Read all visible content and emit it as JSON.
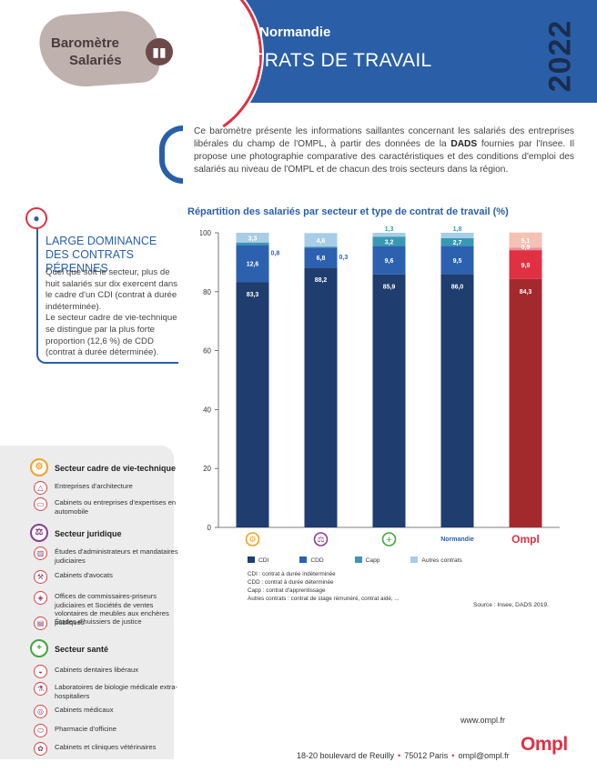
{
  "header": {
    "logo_line1": "Baromètre",
    "logo_line2": "Salariés",
    "region": "Région Normandie",
    "title": "CONTRATS DE TRAVAIL",
    "year": "2022"
  },
  "intro": {
    "before": "Ce baromètre présente les informations saillantes concernant les salariés des entreprises libérales du champ de l'OMPL, à partir des données de la ",
    "bold": "DADS",
    "after": " fournies par l'Insee. Il propose une photographie comparative des caractéristiques et des conditions d'emploi des salariés au niveau de l'OMPL et de chacun des trois secteurs dans la région."
  },
  "insight": {
    "icon": "lightbulb-icon",
    "title": "LARGE DOMINANCE DES CONTRATS PÉRENNES",
    "p1": "Quel que soit le secteur, plus de huit salariés sur dix exercent dans le cadre d'un CDI (contrat à durée indéterminée).",
    "p2": "Le secteur cadre de vie-technique se distingue par la plus forte proportion (12,6 %) de CDD (contrat à durée déterminée)."
  },
  "sidebar": {
    "sections": [
      {
        "title": "Secteur cadre de vie-technique",
        "icon": "gear-icon",
        "color": "#f2a127",
        "items": [
          {
            "label": "Entreprises d'architecture",
            "icon": "compass-icon"
          },
          {
            "label": "Cabinets ou entreprises d'expertises en automobile",
            "icon": "car-icon"
          }
        ]
      },
      {
        "title": "Secteur juridique",
        "icon": "scales-icon",
        "color": "#8c3f8f",
        "items": [
          {
            "label": "Études d'administrateurs et mandataires judiciaires",
            "icon": "building-icon"
          },
          {
            "label": "Cabinets d'avocats",
            "icon": "gavel-icon"
          },
          {
            "label": "Offices de commissaires-priseurs judiciaires et Sociétés de ventes volontaires de meubles aux enchères publiques",
            "icon": "auction-icon"
          },
          {
            "label": "Études d'huissiers de justice",
            "icon": "document-icon"
          }
        ]
      },
      {
        "title": "Secteur santé",
        "icon": "plus-icon",
        "color": "#45a53c",
        "items": [
          {
            "label": "Cabinets dentaires libéraux",
            "icon": "tooth-icon"
          },
          {
            "label": "Laboratoires de biologie médicale extra-hospitaliers",
            "icon": "flask-icon"
          },
          {
            "label": "Cabinets médicaux",
            "icon": "stethoscope-icon"
          },
          {
            "label": "Pharmacie d'officine",
            "icon": "pill-icon"
          },
          {
            "label": "Cabinets et cliniques vétérinaires",
            "icon": "paw-icon"
          }
        ]
      }
    ]
  },
  "chart_title": "Répartition des salariés par secteur et type de contrat de travail (%)",
  "chart_data": {
    "type": "bar",
    "stacked": true,
    "ylim": [
      0,
      100
    ],
    "yticks": [
      0,
      20,
      40,
      60,
      80,
      100
    ],
    "categories": [
      "cadre-de-vie-technique-icon",
      "juridique-icon",
      "sante-icon",
      "Normandie",
      "Ompl"
    ],
    "category_labels": [
      "",
      "",
      "",
      "Normandie",
      "Ompl"
    ],
    "series": [
      {
        "name": "CDI",
        "values": [
          83.3,
          88.2,
          85.9,
          86.0,
          84.3
        ],
        "labels": [
          "83,3",
          "88,2",
          "85,9",
          "86,0",
          "84,3"
        ]
      },
      {
        "name": "CDD",
        "values": [
          12.6,
          6.8,
          9.6,
          9.5,
          9.8
        ],
        "labels": [
          "12,6",
          "6,8",
          "9,6",
          "9,5",
          "9,8"
        ]
      },
      {
        "name": "Capp",
        "values": [
          0.8,
          0.3,
          3.2,
          2.7,
          0.9
        ],
        "labels": [
          "0,8",
          "0,3",
          "3,2",
          "2,7",
          "0,9"
        ]
      },
      {
        "name": "Autres contrats",
        "values": [
          3.3,
          4.6,
          1.3,
          1.8,
          5.1
        ],
        "labels": [
          "3,3",
          "4,6",
          "1,3",
          "1,8",
          "5,1"
        ]
      }
    ],
    "colors": {
      "blue": {
        "CDI": "#1f3d6e",
        "CDD": "#2c61b0",
        "Capp": "#3a98b3",
        "Autres contrats": "#a8cde6"
      },
      "red": {
        "CDI": "#a32a2c",
        "CDD": "#e03143",
        "Capp": "#e88f9b",
        "Autres contrats": "#f5c1b4"
      }
    }
  },
  "legend": [
    {
      "name": "CDI",
      "color": "#1f3d6e"
    },
    {
      "name": "CDD",
      "color": "#2c61b0"
    },
    {
      "name": "Capp",
      "color": "#3a98b3"
    },
    {
      "name": "Autres contrats",
      "color": "#a8cde6"
    }
  ],
  "definitions": [
    "CDI : contrat à durée indéterminée",
    "CDD : contrat à durée déterminée",
    "Capp : contrat d'apprentissage",
    "Autres contrats : contrat de stage rémunéré, contrat aidé, ..."
  ],
  "source": "Source : Insee, DADS 2019.",
  "footer": {
    "web": "www.ompl.fr",
    "address": "18-20 boulevard de Reuilly",
    "city": "75012 Paris",
    "email": "ompl@ompl.fr",
    "logo": "Ompl"
  }
}
